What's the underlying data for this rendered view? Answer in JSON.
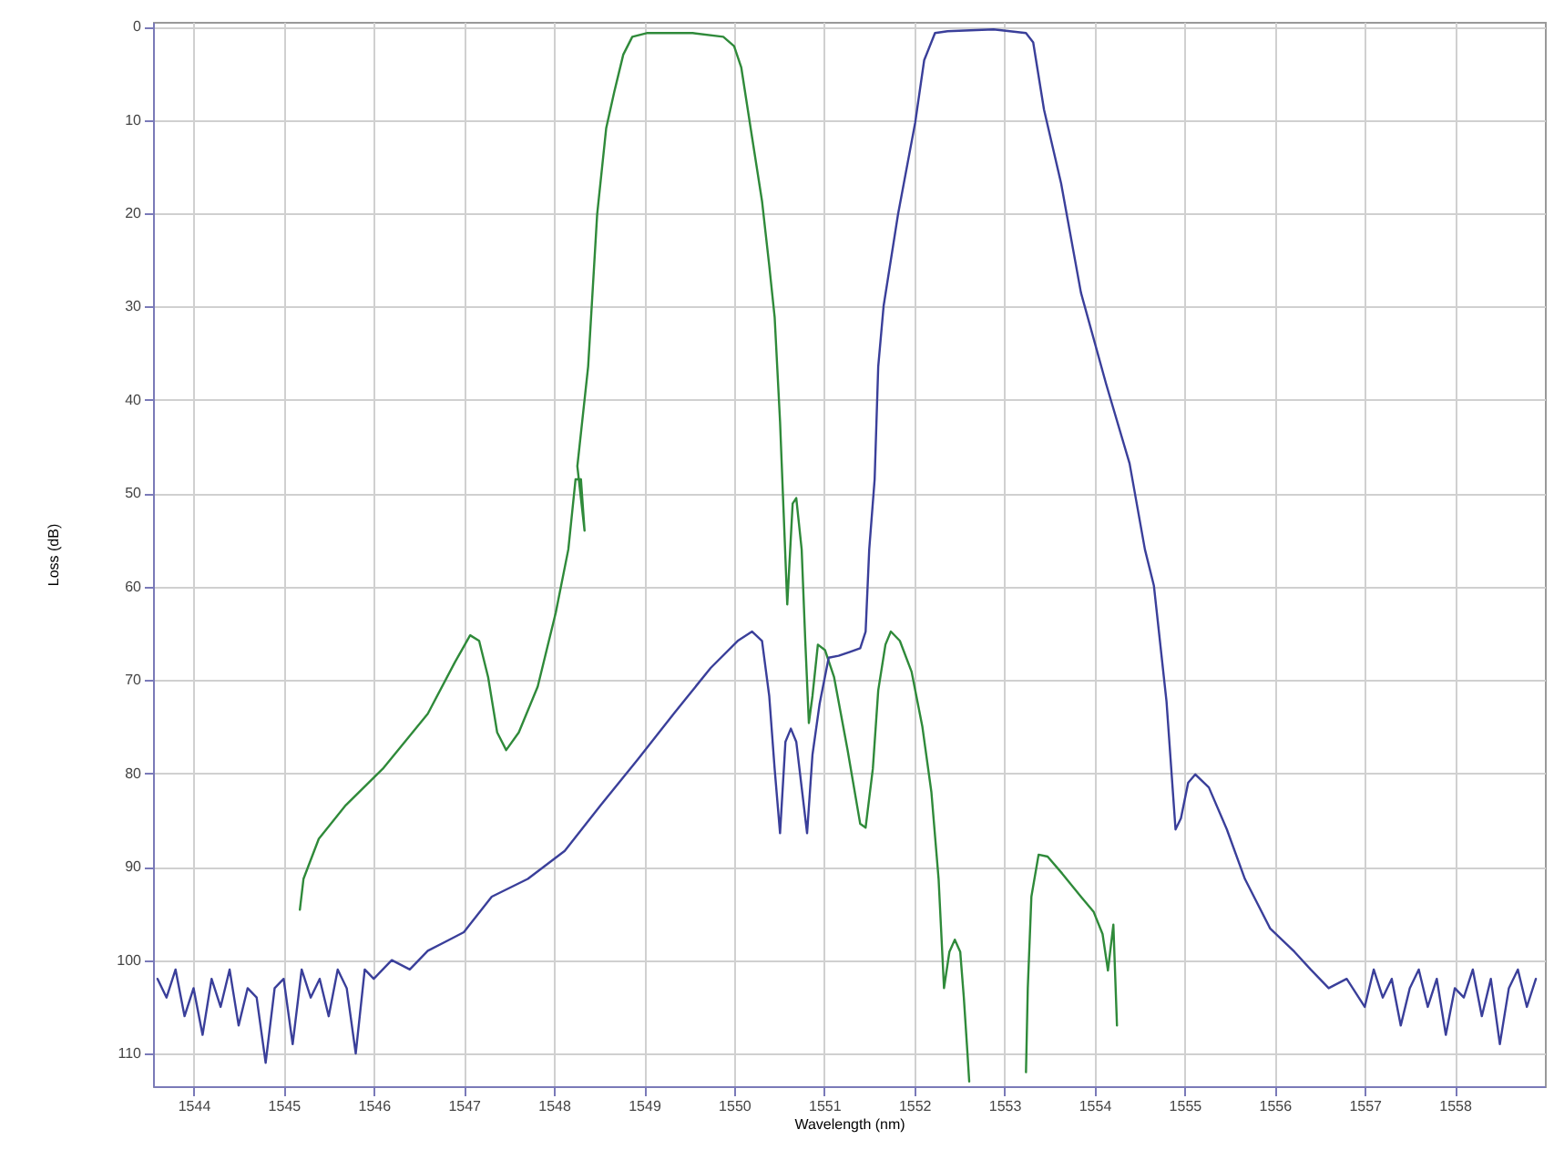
{
  "chart_data": {
    "type": "line",
    "xlabel": "Wavelength (nm)",
    "ylabel": "Loss (dB)",
    "xlim": [
      1543.55,
      1559
    ],
    "ylim": [
      113.5,
      -0.5
    ],
    "xticks": [
      1544,
      1545,
      1546,
      1547,
      1548,
      1549,
      1550,
      1551,
      1552,
      1553,
      1554,
      1555,
      1556,
      1557,
      1558
    ],
    "yticks": [
      0,
      10,
      20,
      30,
      40,
      50,
      60,
      70,
      80,
      90,
      100,
      110
    ],
    "grid": true,
    "line_style": "solid",
    "marker": "none",
    "series": [
      {
        "color": "#2f8a3a",
        "x": [
          1545.18,
          1545.22,
          1545.39,
          1545.69,
          1546.1,
          1546.6,
          1546.9,
          1547.07,
          1547.17,
          1547.27,
          1547.37,
          1547.47,
          1547.61,
          1547.82,
          1548.02,
          1548.16,
          1548.24,
          1548.3,
          1548.34,
          1548.26,
          1548.38,
          1548.48,
          1548.58,
          1548.67,
          1548.77,
          1548.87,
          1549.03,
          1549.54,
          1549.88,
          1550,
          1550.08,
          1550.2,
          1550.31,
          1550.39,
          1550.45,
          1550.51,
          1550.55,
          1550.59,
          1550.65,
          1550.69,
          1550.75,
          1550.79,
          1550.83,
          1550.87,
          1550.93,
          1551.01,
          1551.11,
          1551.26,
          1551.4,
          1551.46,
          1551.54,
          1551.6,
          1551.68,
          1551.74,
          1551.84,
          1551.97,
          1552.09,
          1552.19,
          1552.27,
          1552.33,
          1552.39,
          1552.45,
          1552.51,
          1552.55,
          1552.59,
          1552.61,
          1552.9,
          1553.24,
          1553.26,
          1553.3,
          1553.38,
          1553.48,
          1553.64,
          1553.85,
          1553.99,
          1554.09,
          1554.15,
          1554.21,
          1554.25
        ],
        "values": [
          94.6,
          91.3,
          87,
          83.4,
          79.5,
          73.6,
          68.1,
          65.2,
          65.8,
          69.7,
          75.6,
          77.5,
          75.6,
          70.7,
          62.8,
          56,
          48.5,
          48.5,
          54,
          47.1,
          36.4,
          20.1,
          10.9,
          7,
          3,
          1.1,
          0.7,
          0.7,
          1.1,
          2.1,
          4.4,
          11.9,
          18.7,
          25.6,
          31.1,
          42.3,
          52.1,
          61.9,
          51.1,
          50.5,
          56,
          65.8,
          74.6,
          71.7,
          66.2,
          66.8,
          69.7,
          77.5,
          85.4,
          85.8,
          79.5,
          71.1,
          66.2,
          64.8,
          65.8,
          69.1,
          75,
          82,
          91.3,
          103,
          99.1,
          97.8,
          99.1,
          104,
          109.9,
          113,
          null,
          112,
          103,
          93.2,
          88.7,
          88.9,
          90.7,
          93.2,
          94.8,
          97.2,
          101.1,
          96.2,
          107
        ]
      },
      {
        "color": "#3a3f9a",
        "x": [
          1543.6,
          1543.7,
          1543.8,
          1543.9,
          1544,
          1544.1,
          1544.2,
          1544.3,
          1544.4,
          1544.5,
          1544.6,
          1544.7,
          1544.8,
          1544.9,
          1545,
          1545.1,
          1545.2,
          1545.3,
          1545.4,
          1545.5,
          1545.6,
          1545.7,
          1545.8,
          1545.9,
          1546,
          1546.2,
          1546.4,
          1546.6,
          1546.8,
          1547,
          1547.31,
          1547.71,
          1548.12,
          1548.52,
          1548.93,
          1549.33,
          1549.74,
          1550.04,
          1550.2,
          1550.31,
          1550.39,
          1550.45,
          1550.51,
          1550.57,
          1550.63,
          1550.69,
          1550.75,
          1550.81,
          1550.87,
          1550.95,
          1551.05,
          1551.16,
          1551.28,
          1551.4,
          1551.46,
          1551.5,
          1551.56,
          1551.6,
          1551.66,
          1551.82,
          1552.01,
          1552.11,
          1552.23,
          1552.37,
          1552.88,
          1553.24,
          1553.32,
          1553.44,
          1553.63,
          1553.85,
          1554.13,
          1554.39,
          1554.56,
          1554.66,
          1554.8,
          1554.9,
          1554.96,
          1555.04,
          1555.12,
          1555.27,
          1555.47,
          1555.67,
          1555.95,
          1556.22,
          1556.4,
          1556.6,
          1556.8,
          1557,
          1557.1,
          1557.2,
          1557.3,
          1557.4,
          1557.5,
          1557.6,
          1557.7,
          1557.8,
          1557.9,
          1558,
          1558.1,
          1558.2,
          1558.3,
          1558.4,
          1558.5,
          1558.6,
          1558.7,
          1558.8,
          1558.9
        ],
        "values": [
          102,
          104,
          101,
          106,
          103,
          108,
          102,
          105,
          101,
          107,
          103,
          104,
          111,
          103,
          102,
          109,
          101,
          104,
          102,
          106,
          101,
          103,
          110,
          101,
          102,
          100,
          101,
          99,
          98,
          97,
          93.2,
          91.3,
          88.3,
          83.4,
          78.5,
          73.6,
          68.7,
          65.8,
          64.8,
          65.8,
          71.7,
          79.5,
          86.4,
          76.6,
          75.2,
          76.6,
          81.5,
          86.4,
          78,
          72.5,
          67.6,
          67.4,
          67,
          66.6,
          64.8,
          56,
          48.5,
          36.4,
          29.9,
          20.1,
          10.3,
          3.6,
          0.7,
          0.5,
          0.3,
          0.7,
          1.7,
          8.9,
          16.8,
          28.5,
          38.3,
          46.8,
          56,
          59.9,
          72.3,
          86,
          84.8,
          81,
          80.1,
          81.5,
          86,
          91.3,
          96.6,
          99.1,
          101,
          103,
          102,
          105,
          101,
          104,
          102,
          107,
          103,
          101,
          105,
          102,
          108,
          103,
          104,
          101,
          106,
          102,
          109,
          103,
          101,
          105,
          102
        ]
      }
    ]
  }
}
